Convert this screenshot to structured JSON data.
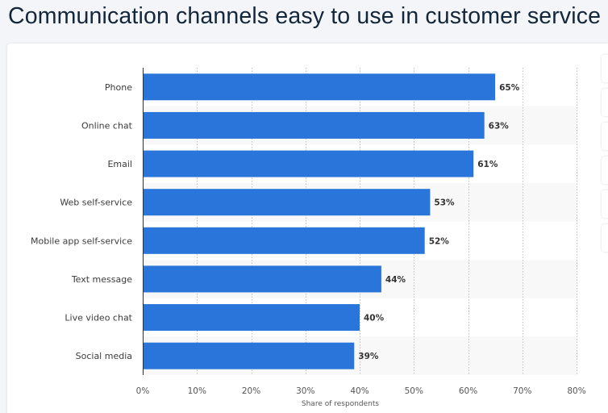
{
  "page": {
    "title": "Communication channels easy to use in customer service"
  },
  "chart_data": {
    "type": "bar",
    "orientation": "horizontal",
    "categories": [
      "Phone",
      "Online chat",
      "Email",
      "Web self-service",
      "Mobile app self-service",
      "Text message",
      "Live video chat",
      "Social media"
    ],
    "values": [
      65,
      63,
      61,
      53,
      52,
      44,
      40,
      39
    ],
    "value_labels": [
      "65%",
      "63%",
      "61%",
      "53%",
      "52%",
      "44%",
      "40%",
      "39%"
    ],
    "x_ticks": [
      0,
      10,
      20,
      30,
      40,
      50,
      60,
      70,
      80
    ],
    "x_tick_labels": [
      "0%",
      "10%",
      "20%",
      "30%",
      "40%",
      "50%",
      "60%",
      "70%",
      "80%"
    ],
    "xlim": [
      0,
      80
    ],
    "xlabel": "Share of respondents",
    "ylabel": "",
    "title": "Communication channels easy to use in customer service",
    "grid": true,
    "legend": "none",
    "bar_color": "#2a75d9",
    "band_color": "#f8f8f8"
  }
}
